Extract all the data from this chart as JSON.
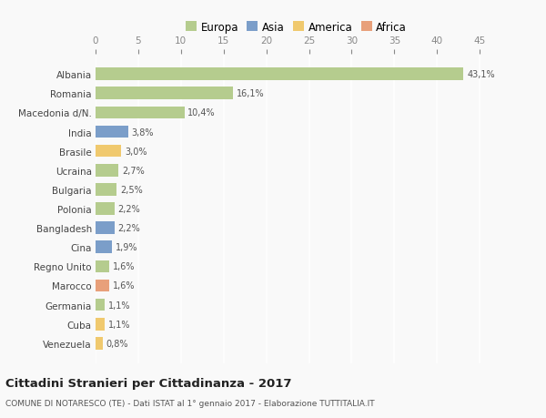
{
  "countries": [
    "Albania",
    "Romania",
    "Macedonia d/N.",
    "India",
    "Brasile",
    "Ucraina",
    "Bulgaria",
    "Polonia",
    "Bangladesh",
    "Cina",
    "Regno Unito",
    "Marocco",
    "Germania",
    "Cuba",
    "Venezuela"
  ],
  "values": [
    43.1,
    16.1,
    10.4,
    3.8,
    3.0,
    2.7,
    2.5,
    2.2,
    2.2,
    1.9,
    1.6,
    1.6,
    1.1,
    1.1,
    0.8
  ],
  "labels": [
    "43,1%",
    "16,1%",
    "10,4%",
    "3,8%",
    "3,0%",
    "2,7%",
    "2,5%",
    "2,2%",
    "2,2%",
    "1,9%",
    "1,6%",
    "1,6%",
    "1,1%",
    "1,1%",
    "0,8%"
  ],
  "continents": [
    "Europa",
    "Europa",
    "Europa",
    "Asia",
    "America",
    "Europa",
    "Europa",
    "Europa",
    "Asia",
    "Asia",
    "Europa",
    "Africa",
    "Europa",
    "America",
    "America"
  ],
  "colors": {
    "Europa": "#b5cc8e",
    "Asia": "#7b9ec9",
    "America": "#f0c96e",
    "Africa": "#e8a07a"
  },
  "title": "Cittadini Stranieri per Cittadinanza - 2017",
  "subtitle": "COMUNE DI NOTARESCO (TE) - Dati ISTAT al 1° gennaio 2017 - Elaborazione TUTTITALIA.IT",
  "xlim": [
    0,
    47
  ],
  "xticks": [
    0,
    5,
    10,
    15,
    20,
    25,
    30,
    35,
    40,
    45
  ],
  "background_color": "#f9f9f9",
  "grid_color": "#e0e0e0",
  "bar_height": 0.65
}
